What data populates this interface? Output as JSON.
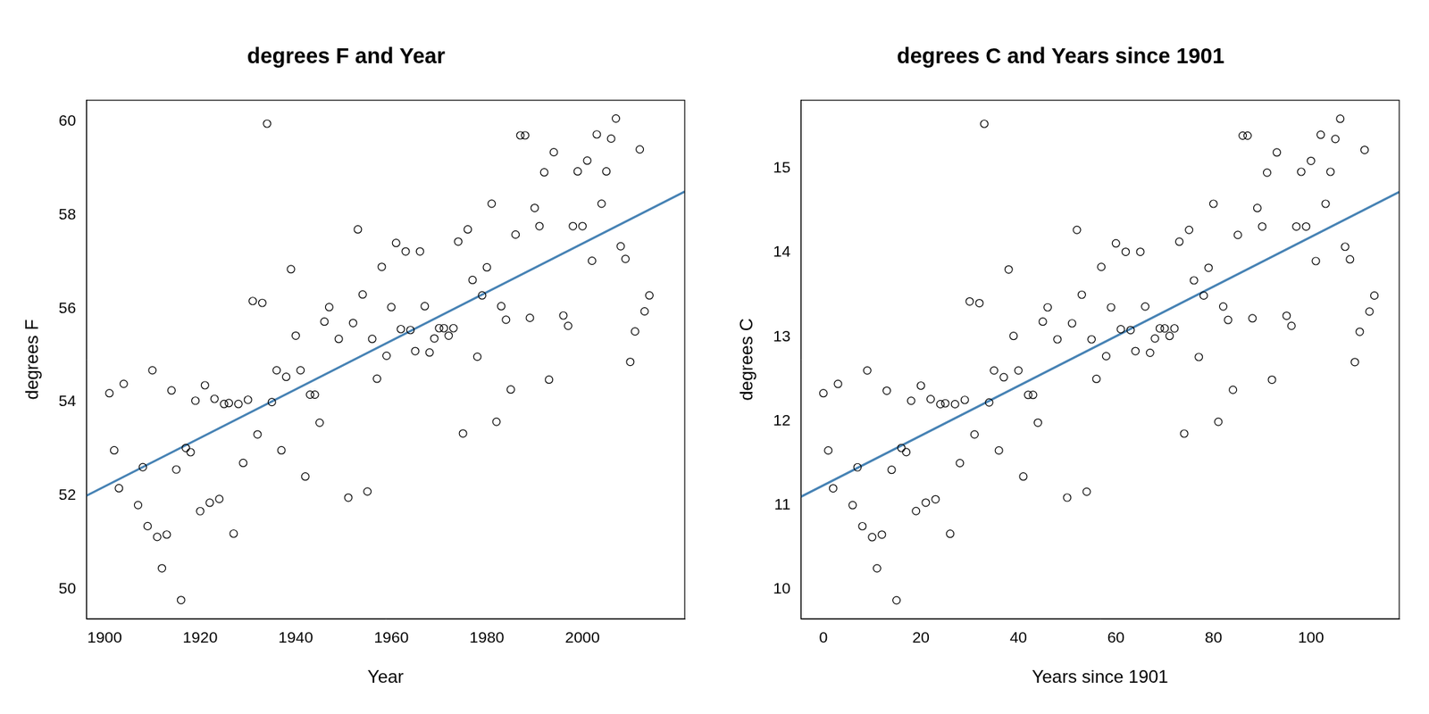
{
  "chart_data": [
    {
      "type": "scatter",
      "title": "degrees F and Year",
      "x_label": "Year",
      "y_label": "degrees F",
      "color": "#000000",
      "marker": "circle",
      "grid": false,
      "xlim": [
        1896.2,
        2021.4
      ],
      "ylim": [
        49.37,
        60.45
      ],
      "xticks": [
        1900,
        1920,
        1940,
        1960,
        1980,
        2000
      ],
      "yticks": [
        50,
        52,
        54,
        56,
        58,
        60
      ],
      "x": [
        1901,
        1902,
        1903,
        1904,
        1907,
        1908,
        1909,
        1910,
        1911,
        1912,
        1913,
        1914,
        1915,
        1916,
        1917,
        1918,
        1919,
        1920,
        1921,
        1922,
        1923,
        1924,
        1925,
        1926,
        1927,
        1928,
        1929,
        1930,
        1931,
        1932,
        1933,
        1934,
        1935,
        1936,
        1937,
        1938,
        1939,
        1940,
        1941,
        1942,
        1943,
        1944,
        1945,
        1946,
        1947,
        1949,
        1951,
        1952,
        1953,
        1954,
        1955,
        1956,
        1957,
        1958,
        1959,
        1960,
        1961,
        1962,
        1963,
        1964,
        1965,
        1966,
        1967,
        1968,
        1969,
        1970,
        1971,
        1972,
        1973,
        1974,
        1975,
        1976,
        1977,
        1978,
        1979,
        1980,
        1981,
        1982,
        1983,
        1984,
        1985,
        1986,
        1987,
        1988,
        1989,
        1990,
        1991,
        1992,
        1993,
        1994,
        1996,
        1997,
        1998,
        1999,
        2000,
        2001,
        2002,
        2003,
        2004,
        2005,
        2006,
        2007,
        2008,
        2009,
        2010,
        2011,
        2012,
        2013,
        2014
      ],
      "values": [
        54.19,
        52.97,
        52.16,
        54.39,
        51.8,
        52.61,
        51.35,
        54.68,
        51.12,
        50.45,
        51.17,
        54.25,
        52.56,
        49.77,
        53.02,
        52.93,
        54.03,
        51.67,
        54.36,
        51.85,
        54.07,
        51.93,
        53.96,
        53.98,
        51.19,
        53.96,
        52.7,
        54.05,
        56.16,
        53.31,
        56.12,
        59.95,
        54.0,
        54.68,
        52.97,
        54.54,
        56.84,
        55.42,
        54.68,
        52.41,
        54.16,
        54.16,
        53.56,
        55.72,
        56.03,
        55.35,
        51.96,
        55.69,
        57.69,
        56.3,
        52.09,
        55.35,
        54.5,
        56.89,
        54.99,
        56.03,
        57.4,
        55.56,
        57.22,
        55.54,
        55.09,
        57.22,
        56.05,
        55.06,
        55.36,
        55.58,
        55.58,
        55.42,
        55.58,
        57.43,
        53.33,
        57.69,
        56.61,
        54.97,
        56.28,
        56.88,
        58.24,
        53.58,
        56.05,
        55.76,
        54.27,
        57.58,
        59.7,
        59.7,
        55.8,
        58.15,
        57.76,
        58.91,
        54.48,
        59.34,
        55.85,
        55.63,
        57.76,
        58.93,
        57.76,
        59.16,
        57.02,
        59.72,
        58.24,
        58.93,
        59.63,
        60.06,
        57.33,
        57.06,
        54.86,
        55.51,
        59.4,
        55.94,
        56.28
      ],
      "trend_line": {
        "x": [
          1896.2,
          2021.4
        ],
        "values": [
          52.0,
          58.5
        ],
        "color": "#4682b4",
        "line_style": "solid"
      }
    },
    {
      "type": "scatter",
      "title": "degrees C and Years since 1901",
      "x_label": "Years since 1901",
      "y_label": "degrees C",
      "color": "#000000",
      "marker": "circle",
      "grid": false,
      "xlim": [
        -4.6,
        118.1
      ],
      "ylim": [
        9.65,
        15.81
      ],
      "xticks": [
        0,
        20,
        40,
        60,
        80,
        100
      ],
      "yticks": [
        10,
        11,
        12,
        13,
        14,
        15
      ],
      "x": [
        0,
        1,
        2,
        3,
        6,
        7,
        8,
        9,
        10,
        11,
        12,
        13,
        14,
        15,
        16,
        17,
        18,
        19,
        20,
        21,
        22,
        23,
        24,
        25,
        26,
        27,
        28,
        29,
        30,
        31,
        32,
        33,
        34,
        35,
        36,
        37,
        38,
        39,
        40,
        41,
        42,
        43,
        44,
        45,
        46,
        48,
        50,
        51,
        52,
        53,
        54,
        55,
        56,
        57,
        58,
        59,
        60,
        61,
        62,
        63,
        64,
        65,
        66,
        67,
        68,
        69,
        70,
        71,
        72,
        73,
        74,
        75,
        76,
        77,
        78,
        79,
        80,
        81,
        82,
        83,
        84,
        85,
        86,
        87,
        88,
        89,
        90,
        91,
        92,
        93,
        95,
        96,
        97,
        98,
        99,
        100,
        101,
        102,
        103,
        104,
        105,
        106,
        107,
        108,
        109,
        110,
        111,
        112,
        113
      ],
      "values": [
        12.33,
        11.65,
        11.2,
        12.44,
        11.0,
        11.45,
        10.75,
        12.6,
        10.62,
        10.25,
        10.65,
        12.36,
        11.42,
        9.87,
        11.68,
        11.63,
        12.24,
        10.93,
        12.42,
        11.03,
        12.26,
        11.07,
        12.2,
        12.21,
        10.66,
        12.2,
        11.5,
        12.25,
        13.42,
        11.84,
        13.4,
        15.53,
        12.22,
        12.6,
        11.65,
        12.52,
        13.8,
        13.01,
        12.6,
        11.34,
        12.31,
        12.31,
        11.98,
        13.18,
        13.35,
        12.97,
        11.09,
        13.16,
        14.27,
        13.5,
        11.16,
        12.97,
        12.5,
        13.83,
        12.77,
        13.35,
        14.11,
        13.09,
        14.01,
        13.08,
        12.83,
        14.01,
        13.36,
        12.81,
        12.98,
        13.1,
        13.1,
        13.01,
        13.1,
        14.13,
        11.85,
        14.27,
        13.67,
        12.76,
        13.49,
        13.82,
        14.58,
        11.99,
        13.36,
        13.2,
        12.37,
        14.21,
        15.39,
        15.39,
        13.22,
        14.53,
        14.31,
        14.95,
        12.49,
        15.19,
        13.25,
        13.13,
        14.31,
        14.96,
        14.31,
        15.09,
        13.9,
        15.4,
        14.58,
        14.96,
        15.35,
        15.59,
        14.07,
        13.92,
        12.7,
        13.06,
        15.22,
        13.3,
        13.49
      ],
      "trend_line": {
        "x": [
          -4.6,
          118.1
        ],
        "values": [
          11.1,
          14.72
        ],
        "color": "#4682b4",
        "line_style": "solid"
      }
    }
  ]
}
